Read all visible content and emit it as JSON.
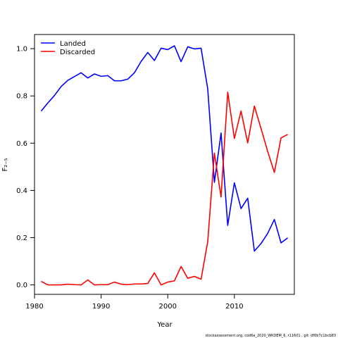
{
  "chart_data": {
    "type": "line",
    "xlabel": "Year",
    "ylabel": "F₂₋₅",
    "xlim": [
      1980,
      2019
    ],
    "ylim": [
      -0.04,
      1.06
    ],
    "xticks": [
      1980,
      1990,
      2000,
      2010
    ],
    "yticks": [
      0.0,
      0.2,
      0.4,
      0.6,
      0.8,
      1.0
    ],
    "ytick_labels": [
      "0.0",
      "0.2",
      "0.4",
      "0.6",
      "0.8",
      "1.0"
    ],
    "grid": false,
    "legend_position": "top-left",
    "x": [
      1981,
      1982,
      1983,
      1984,
      1985,
      1986,
      1987,
      1988,
      1989,
      1990,
      1991,
      1992,
      1993,
      1994,
      1995,
      1996,
      1997,
      1998,
      1999,
      2000,
      2001,
      2002,
      2003,
      2004,
      2005,
      2006,
      2007,
      2008,
      2009,
      2010,
      2011,
      2012,
      2013,
      2014,
      2015,
      2016,
      2017,
      2018
    ],
    "series": [
      {
        "name": "Landed",
        "color": "#0000ff",
        "values": [
          0.736,
          0.77,
          0.802,
          0.84,
          0.866,
          0.882,
          0.898,
          0.876,
          0.893,
          0.883,
          0.886,
          0.864,
          0.864,
          0.871,
          0.898,
          0.946,
          0.984,
          0.95,
          1.002,
          0.996,
          1.012,
          0.945,
          1.008,
          0.999,
          1.002,
          0.83,
          0.434,
          0.643,
          0.252,
          0.432,
          0.323,
          0.367,
          0.143,
          0.175,
          0.218,
          0.277,
          0.178,
          0.199
        ]
      },
      {
        "name": "Discarded",
        "color": "#ff0000",
        "values": [
          0.015,
          0.0,
          0.0,
          0.0,
          0.003,
          0.001,
          0.0,
          0.021,
          0.0,
          0.001,
          0.001,
          0.012,
          0.003,
          0.001,
          0.004,
          0.004,
          0.006,
          0.051,
          0.0,
          0.012,
          0.017,
          0.078,
          0.028,
          0.036,
          0.024,
          0.183,
          0.558,
          0.372,
          0.816,
          0.62,
          0.736,
          0.601,
          0.757,
          0.662,
          0.565,
          0.476,
          0.622,
          0.637
        ]
      }
    ],
    "footer": "stockassessment.org, cod6a_2020_WKDEM_6, r11601 , git: df0b7c1bcb83"
  }
}
